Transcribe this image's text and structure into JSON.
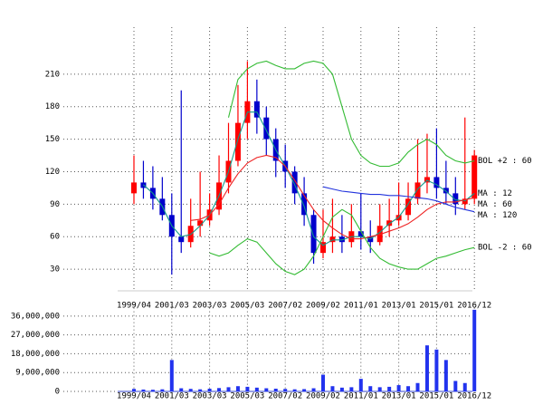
{
  "chart_data": [
    {
      "type": "candlestick",
      "categories": [
        "1999/04",
        null,
        null,
        null,
        "2001/03",
        null,
        null,
        null,
        "2003/03",
        null,
        null,
        null,
        "2005/03",
        null,
        null,
        null,
        "2007/02",
        null,
        null,
        null,
        "2009/02",
        null,
        null,
        null,
        "2011/01",
        null,
        null,
        null,
        "2013/01",
        null,
        null,
        null,
        "2015/01",
        null,
        null,
        null,
        "2016/12"
      ],
      "open": [
        100,
        110,
        105,
        95,
        80,
        60,
        55,
        70,
        75,
        85,
        110,
        130,
        165,
        185,
        170,
        150,
        130,
        120,
        100,
        80,
        45,
        55,
        60,
        55,
        65,
        60,
        55,
        70,
        75,
        80,
        95,
        110,
        115,
        105,
        100,
        90,
        95
      ],
      "high": [
        135,
        130,
        125,
        115,
        100,
        195,
        95,
        120,
        100,
        135,
        165,
        200,
        222,
        205,
        180,
        160,
        145,
        125,
        115,
        85,
        85,
        95,
        80,
        90,
        100,
        75,
        90,
        95,
        110,
        110,
        150,
        155,
        160,
        130,
        115,
        170,
        140
      ],
      "low": [
        90,
        95,
        85,
        75,
        25,
        45,
        50,
        60,
        70,
        80,
        100,
        125,
        150,
        155,
        135,
        115,
        105,
        90,
        70,
        35,
        40,
        45,
        45,
        50,
        48,
        45,
        52,
        60,
        70,
        75,
        90,
        100,
        95,
        90,
        80,
        85,
        90
      ],
      "close": [
        110,
        105,
        95,
        80,
        60,
        55,
        70,
        75,
        85,
        110,
        130,
        165,
        185,
        170,
        150,
        130,
        120,
        100,
        80,
        45,
        55,
        60,
        55,
        65,
        60,
        55,
        70,
        75,
        80,
        95,
        110,
        115,
        105,
        100,
        90,
        95,
        135
      ],
      "up_color": "#ff0000",
      "down_color": "#0000cc",
      "series": [
        {
          "name": "BOL +2 : 60",
          "color": "#33bb33",
          "values": [
            null,
            null,
            null,
            null,
            null,
            null,
            null,
            null,
            null,
            null,
            170,
            205,
            215,
            220,
            222,
            218,
            215,
            215,
            220,
            222,
            220,
            210,
            180,
            150,
            135,
            128,
            125,
            125,
            128,
            138,
            145,
            150,
            145,
            135,
            130,
            128,
            130
          ]
        },
        {
          "name": "MA : 12",
          "color": "#119988",
          "values": [
            null,
            108,
            100,
            88,
            70,
            60,
            62,
            70,
            80,
            98,
            120,
            150,
            175,
            175,
            158,
            140,
            125,
            108,
            88,
            60,
            52,
            57,
            57,
            60,
            60,
            58,
            64,
            72,
            78,
            90,
            104,
            112,
            108,
            102,
            94,
            93,
            100
          ]
        },
        {
          "name": "MA : 60",
          "color": "#ee2222",
          "values": [
            null,
            null,
            null,
            null,
            null,
            null,
            75,
            76,
            80,
            90,
            105,
            118,
            128,
            133,
            135,
            133,
            125,
            112,
            98,
            85,
            75,
            68,
            62,
            58,
            58,
            60,
            62,
            65,
            68,
            72,
            78,
            85,
            90,
            92,
            92,
            94,
            96
          ]
        },
        {
          "name": "MA : 120",
          "color": "#2233dd",
          "values": [
            null,
            null,
            null,
            null,
            null,
            null,
            null,
            null,
            null,
            null,
            null,
            null,
            null,
            null,
            null,
            null,
            null,
            null,
            null,
            null,
            106,
            104,
            102,
            101,
            100,
            99,
            99,
            98,
            98,
            97,
            96,
            95,
            93,
            90,
            87,
            85,
            83
          ]
        },
        {
          "name": "BOL -2 : 60",
          "color": "#33bb33",
          "values": [
            null,
            null,
            null,
            null,
            null,
            null,
            null,
            null,
            45,
            42,
            45,
            52,
            58,
            55,
            45,
            35,
            28,
            25,
            30,
            42,
            60,
            78,
            85,
            80,
            65,
            50,
            40,
            35,
            32,
            30,
            30,
            35,
            40,
            42,
            45,
            48,
            50
          ]
        }
      ],
      "ylim": [
        10,
        250
      ],
      "yticks": [
        30,
        60,
        90,
        120,
        150,
        180,
        210
      ],
      "grid": true
    },
    {
      "type": "bar",
      "categories": [
        "1999/04",
        null,
        null,
        null,
        "2001/03",
        null,
        null,
        null,
        "2003/03",
        null,
        null,
        null,
        "2005/03",
        null,
        null,
        null,
        "2007/02",
        null,
        null,
        null,
        "2009/02",
        null,
        null,
        null,
        "2011/01",
        null,
        null,
        null,
        "2013/01",
        null,
        null,
        null,
        "2015/01",
        null,
        null,
        null,
        "2016/12"
      ],
      "values": [
        1200000,
        900000,
        800000,
        1000000,
        15000000,
        1500000,
        1200000,
        1000000,
        1300000,
        1600000,
        2000000,
        2500000,
        2200000,
        1800000,
        1500000,
        1300000,
        1200000,
        1000000,
        1100000,
        1500000,
        8000000,
        2500000,
        1800000,
        2000000,
        6000000,
        2500000,
        2000000,
        2200000,
        3000000,
        2500000,
        4000000,
        22000000,
        20000000,
        15000000,
        5000000,
        4000000,
        39000000
      ],
      "color": "#2233ee",
      "ylim": [
        0,
        40000000
      ],
      "yticks": [
        0,
        {
          "value": 9000000,
          "label": "9,000,000"
        },
        {
          "value": 18000000,
          "label": "18,000,000"
        },
        {
          "value": 27000000,
          "label": "27,000,000"
        },
        {
          "value": 36000000,
          "label": "36,000,000"
        }
      ],
      "grid": true
    }
  ]
}
